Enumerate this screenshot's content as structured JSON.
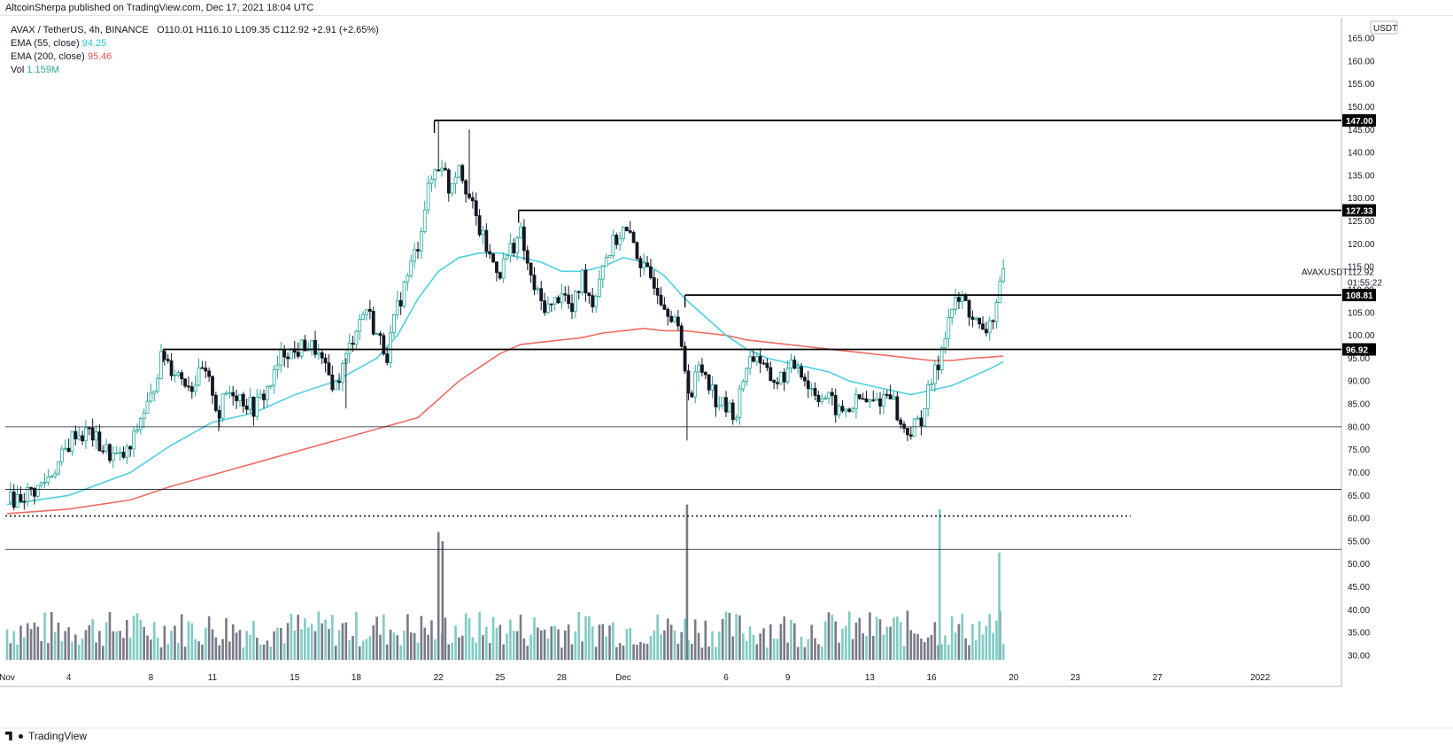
{
  "header": {
    "publish_text": "AltcoinSherpa published on TradingView.com, Dec 17, 2021 18:04 UTC"
  },
  "legend": {
    "symbol": "AVAX / TetherUS, 4h, BINANCE",
    "ohlc": "O110.01  H116.10  L109.35  C112.92  +2.91 (+2.65%)",
    "ema55_label": "EMA (55, close)",
    "ema55_value": "94.25",
    "ema200_label": "EMA (200, close)",
    "ema200_value": "95.46",
    "vol_label": "Vol",
    "vol_value": "1.159M"
  },
  "footer": {
    "brand": "TradingView"
  },
  "chart_data": {
    "type": "candlestick",
    "currency_label": "USDT",
    "symbol_label": "AVAXUSDT",
    "last_price": "112.92",
    "countdown": "01:55:22",
    "ylim": [
      27,
      167
    ],
    "y_ticks": [
      30,
      35,
      40,
      45,
      50,
      55,
      60,
      65,
      70,
      75,
      80,
      85,
      90,
      95,
      100,
      105,
      110,
      115,
      120,
      125,
      130,
      135,
      140,
      145,
      150,
      155,
      160,
      165
    ],
    "x_tick_labels": [
      {
        "label": "Nov",
        "day": 0
      },
      {
        "label": "4",
        "day": 3
      },
      {
        "label": "8",
        "day": 7
      },
      {
        "label": "11",
        "day": 10
      },
      {
        "label": "15",
        "day": 14
      },
      {
        "label": "18",
        "day": 17
      },
      {
        "label": "22",
        "day": 21
      },
      {
        "label": "25",
        "day": 24
      },
      {
        "label": "28",
        "day": 27
      },
      {
        "label": "Dec",
        "day": 30
      },
      {
        "label": "6",
        "day": 35
      },
      {
        "label": "9",
        "day": 38
      },
      {
        "label": "13",
        "day": 42
      },
      {
        "label": "16",
        "day": 45
      },
      {
        "label": "20",
        "day": 49
      },
      {
        "label": "23",
        "day": 52
      },
      {
        "label": "27",
        "day": 56
      },
      {
        "label": "2022",
        "day": 61
      }
    ],
    "horizontal_levels": [
      {
        "price": 147.0,
        "label": "147.00",
        "start_day": 20.8
      },
      {
        "price": 127.33,
        "label": "127.33",
        "start_day": 24.9
      },
      {
        "price": 108.81,
        "label": "108.81",
        "start_day": 33.0
      },
      {
        "price": 96.92,
        "label": "96.92",
        "start_day": 7.6
      }
    ],
    "support_lines": [
      80,
      66.3,
      53.2
    ],
    "dotted_line": {
      "price": 60.5,
      "end_day": 54.7
    },
    "closes": [
      [
        0,
        63.5
      ],
      [
        0.5,
        64.5
      ],
      [
        1,
        65.5
      ],
      [
        1.5,
        66.5
      ],
      [
        2,
        69
      ],
      [
        2.5,
        72
      ],
      [
        3,
        76
      ],
      [
        3.3,
        79
      ],
      [
        3.6,
        78
      ],
      [
        4,
        79
      ],
      [
        4.5,
        76
      ],
      [
        5,
        74
      ],
      [
        5.5,
        73
      ],
      [
        6,
        75
      ],
      [
        6.5,
        82
      ],
      [
        7,
        86
      ],
      [
        7.3,
        92
      ],
      [
        7.6,
        96
      ],
      [
        8,
        93
      ],
      [
        8.5,
        91
      ],
      [
        9,
        89
      ],
      [
        9.5,
        92
      ],
      [
        10,
        88
      ],
      [
        10.3,
        82
      ],
      [
        10.6,
        87
      ],
      [
        11,
        88
      ],
      [
        11.5,
        86
      ],
      [
        12,
        84
      ],
      [
        12.5,
        87
      ],
      [
        13,
        91
      ],
      [
        13.3,
        95
      ],
      [
        13.6,
        97
      ],
      [
        14,
        96
      ],
      [
        14.5,
        98
      ],
      [
        15,
        97
      ],
      [
        15.5,
        92
      ],
      [
        16,
        89
      ],
      [
        16.5,
        95
      ],
      [
        17,
        102
      ],
      [
        17.5,
        106
      ],
      [
        18,
        100
      ],
      [
        18.5,
        96
      ],
      [
        19,
        106
      ],
      [
        19.5,
        113
      ],
      [
        20,
        120
      ],
      [
        20.4,
        130
      ],
      [
        20.8,
        136
      ],
      [
        21.2,
        138
      ],
      [
        21.5,
        132
      ],
      [
        22,
        138
      ],
      [
        22.5,
        130
      ],
      [
        23,
        123
      ],
      [
        23.5,
        117
      ],
      [
        24,
        114
      ],
      [
        24.5,
        119
      ],
      [
        25,
        122
      ],
      [
        25.5,
        112
      ],
      [
        26,
        107
      ],
      [
        26.5,
        106
      ],
      [
        27,
        110
      ],
      [
        27.5,
        105
      ],
      [
        28,
        113
      ],
      [
        28.5,
        107
      ],
      [
        29,
        116
      ],
      [
        29.5,
        120
      ],
      [
        30,
        123
      ],
      [
        30.5,
        120
      ],
      [
        31,
        114
      ],
      [
        31.5,
        112
      ],
      [
        32,
        107
      ],
      [
        32.5,
        104
      ],
      [
        33,
        93
      ],
      [
        33.3,
        86
      ],
      [
        33.6,
        93
      ],
      [
        34,
        92
      ],
      [
        34.5,
        86
      ],
      [
        35,
        84
      ],
      [
        35.5,
        83
      ],
      [
        36,
        94
      ],
      [
        36.5,
        96
      ],
      [
        37,
        91
      ],
      [
        37.5,
        90
      ],
      [
        38,
        92
      ],
      [
        38.5,
        94
      ],
      [
        39,
        89
      ],
      [
        39.5,
        87
      ],
      [
        40,
        86
      ],
      [
        40.5,
        83
      ],
      [
        41,
        84
      ],
      [
        41.5,
        86
      ],
      [
        42,
        85
      ],
      [
        42.5,
        86
      ],
      [
        43,
        88
      ],
      [
        43.5,
        80
      ],
      [
        44,
        79
      ],
      [
        44.5,
        82
      ],
      [
        45,
        90
      ],
      [
        45.3,
        93
      ],
      [
        45.6,
        100
      ],
      [
        46,
        106
      ],
      [
        46.5,
        108
      ],
      [
        47,
        104
      ],
      [
        47.5,
        100
      ],
      [
        48,
        104
      ],
      [
        48.5,
        112.92
      ]
    ],
    "ema55": [
      [
        0,
        63
      ],
      [
        3,
        65
      ],
      [
        6,
        70
      ],
      [
        8,
        76
      ],
      [
        10,
        81
      ],
      [
        12,
        83
      ],
      [
        14,
        87
      ],
      [
        16,
        90
      ],
      [
        18,
        95
      ],
      [
        19,
        100
      ],
      [
        20,
        108
      ],
      [
        21,
        114
      ],
      [
        22,
        117
      ],
      [
        23,
        118
      ],
      [
        24,
        118
      ],
      [
        25,
        117
      ],
      [
        26,
        116
      ],
      [
        27,
        114
      ],
      [
        28,
        114
      ],
      [
        29,
        115
      ],
      [
        30,
        117
      ],
      [
        31,
        116
      ],
      [
        32,
        113
      ],
      [
        33,
        108
      ],
      [
        34,
        104
      ],
      [
        35,
        100
      ],
      [
        36,
        97
      ],
      [
        37,
        95
      ],
      [
        38,
        94
      ],
      [
        39,
        93
      ],
      [
        40,
        92
      ],
      [
        41,
        90
      ],
      [
        42,
        89
      ],
      [
        43,
        88
      ],
      [
        44,
        87
      ],
      [
        45,
        88
      ],
      [
        46,
        89
      ],
      [
        47,
        91
      ],
      [
        48,
        93
      ],
      [
        48.5,
        94.25
      ]
    ],
    "ema200": [
      [
        0,
        61
      ],
      [
        3,
        62
      ],
      [
        6,
        64
      ],
      [
        8,
        67
      ],
      [
        10,
        69.5
      ],
      [
        12,
        72
      ],
      [
        14,
        74.5
      ],
      [
        16,
        77
      ],
      [
        18,
        79.5
      ],
      [
        20,
        82
      ],
      [
        21,
        86
      ],
      [
        22,
        90
      ],
      [
        23,
        93
      ],
      [
        24,
        96
      ],
      [
        25,
        98
      ],
      [
        26,
        98.5
      ],
      [
        27,
        99
      ],
      [
        28,
        99.5
      ],
      [
        29,
        100.5
      ],
      [
        30,
        101
      ],
      [
        31,
        101.5
      ],
      [
        32,
        101
      ],
      [
        33,
        101
      ],
      [
        34,
        100.5
      ],
      [
        35,
        100
      ],
      [
        36,
        99
      ],
      [
        37,
        98.5
      ],
      [
        38,
        98
      ],
      [
        39,
        97.5
      ],
      [
        40,
        97
      ],
      [
        41,
        96.5
      ],
      [
        42,
        96
      ],
      [
        43,
        95.5
      ],
      [
        44,
        95
      ],
      [
        45,
        94.5
      ],
      [
        46,
        94.5
      ],
      [
        47,
        95
      ],
      [
        48,
        95.3
      ],
      [
        48.5,
        95.46
      ]
    ],
    "volume_spikes": [
      {
        "day": 21.0,
        "value": 57,
        "direction": "down"
      },
      {
        "day": 21.2,
        "value": 55,
        "direction": "down"
      },
      {
        "day": 33.1,
        "value": 63,
        "direction": "down"
      },
      {
        "day": 45.4,
        "value": 62,
        "direction": "up"
      },
      {
        "day": 48.3,
        "value": 52.5,
        "direction": "up"
      }
    ]
  },
  "colors": {
    "up": "#26a69a",
    "down": "#131722",
    "ema55": "#4dd0e1",
    "ema200": "#ef6c62",
    "vol_up": "#80cbc4",
    "vol_down": "#787b86",
    "level_line": "#000000",
    "grid": "#e0e3eb"
  }
}
